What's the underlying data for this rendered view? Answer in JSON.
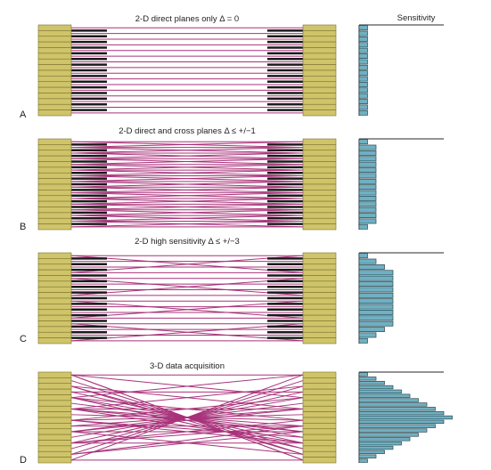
{
  "figure": {
    "sensitivity_title": "Sensitivity",
    "colors": {
      "detector_fill": "#cfc46a",
      "detector_stroke": "#7a7330",
      "lor_line": "#a8327a",
      "septa": "#1a1a1a",
      "histogram_fill": "#6fb0c2",
      "histogram_stroke": "#2b4a55",
      "axis": "#555555"
    },
    "panels": [
      {
        "label": "A",
        "title": "2-D direct planes only Δ = 0",
        "mode": "direct",
        "max_ring_difference": 0,
        "septa": true,
        "sensitivity": [
          1,
          1,
          1,
          1,
          1,
          1,
          1,
          1,
          1,
          1,
          1,
          1,
          1,
          1,
          1,
          1
        ]
      },
      {
        "label": "B",
        "title": "2-D direct and cross planes  Δ ≤ +/−1",
        "mode": "cross",
        "max_ring_difference": 1,
        "septa": true,
        "sensitivity": [
          1,
          2,
          2,
          2,
          2,
          2,
          2,
          2,
          2,
          2,
          2,
          2,
          2,
          2,
          2,
          1
        ]
      },
      {
        "label": "C",
        "title": "2-D high sensitivity Δ ≤ +/−3",
        "mode": "high",
        "max_ring_difference": 3,
        "septa": true,
        "sensitivity": [
          1,
          2,
          3,
          4,
          4,
          4,
          4,
          4,
          4,
          4,
          4,
          4,
          4,
          3,
          2,
          1
        ]
      },
      {
        "label": "D",
        "title": "3-D data acquisition",
        "mode": "3d",
        "max_ring_difference": 15,
        "septa": false,
        "sensitivity": [
          1,
          2,
          3,
          4,
          5,
          6,
          7,
          8,
          9,
          10,
          11,
          10,
          9,
          8,
          7,
          6,
          5,
          4,
          3,
          2,
          1
        ]
      }
    ]
  }
}
